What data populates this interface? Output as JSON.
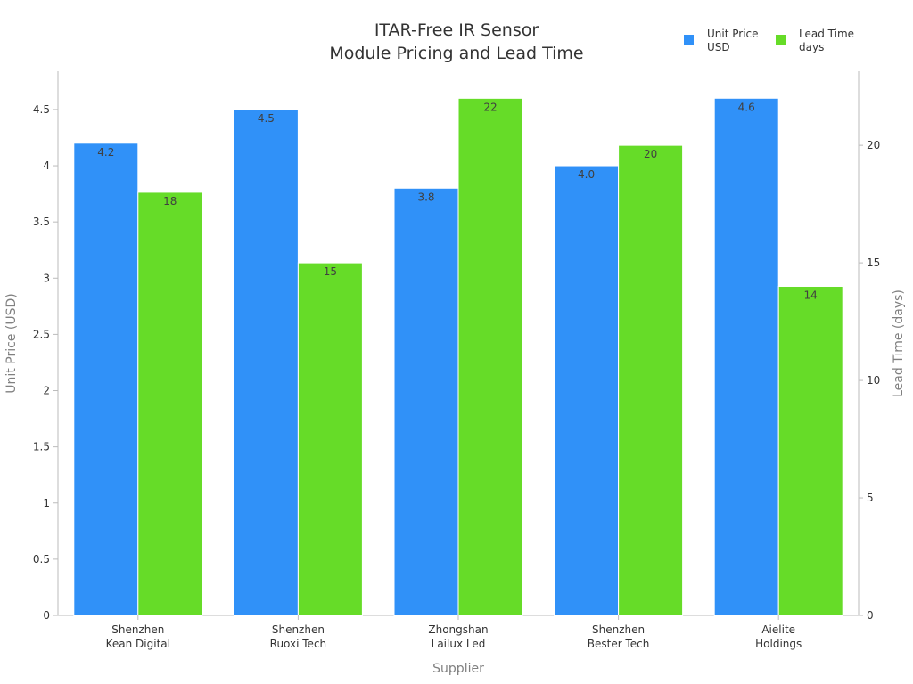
{
  "chart_data": {
    "type": "bar",
    "title": [
      "ITAR-Free IR Sensor",
      "Module Pricing and Lead Time"
    ],
    "xlabel": "Supplier",
    "ylabel": "Unit Price (USD)",
    "y2label": "Lead Time (days)",
    "categories": [
      [
        "Shenzhen",
        "Kean Digital"
      ],
      [
        "Shenzhen",
        "Ruoxi Tech"
      ],
      [
        "Zhongshan",
        "Lailux Led"
      ],
      [
        "Shenzhen",
        "Bester Tech"
      ],
      [
        "Aielite",
        "Holdings"
      ]
    ],
    "series": [
      {
        "name": [
          "Unit Price",
          "USD"
        ],
        "axis": "left",
        "color": "#3091f8",
        "values": [
          4.2,
          4.5,
          3.8,
          4.0,
          4.6
        ],
        "labels": [
          "4.2",
          "4.5",
          "3.8",
          "4.0",
          "4.6"
        ]
      },
      {
        "name": [
          "Lead Time",
          "days"
        ],
        "axis": "right",
        "color": "#66dc28",
        "values": [
          18,
          15,
          22,
          20,
          14
        ],
        "labels": [
          "18",
          "15",
          "22",
          "20",
          "14"
        ]
      }
    ],
    "ylim": [
      0,
      4.84
    ],
    "y_ticks": [
      "0",
      "0.5",
      "1",
      "1.5",
      "2",
      "2.5",
      "3",
      "3.5",
      "4",
      "4.5"
    ],
    "y2lim": [
      0,
      23.15
    ],
    "y2_ticks": [
      "0",
      "5",
      "10",
      "15",
      "20"
    ],
    "legend_position": "top-right",
    "grid": false
  }
}
